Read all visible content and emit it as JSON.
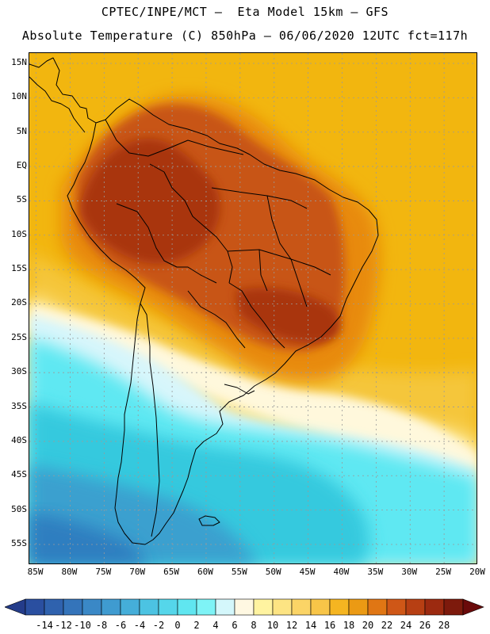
{
  "header": {
    "line1": "CPTEC/INPE/MCT –  Eta Model 15km – GFS",
    "line2": "Absolute Temperature (C) 850hPa – 06/06/2020 12UTC fct=117h"
  },
  "map": {
    "region": "South America",
    "variable": "Absolute Temperature (C) at 850hPa",
    "lat_range": [
      -58,
      16.5
    ],
    "lon_range": [
      -86,
      -20
    ],
    "lat_ticks": [
      {
        "value": 15,
        "label": "15N"
      },
      {
        "value": 10,
        "label": "10N"
      },
      {
        "value": 5,
        "label": "5N"
      },
      {
        "value": 0,
        "label": "EQ"
      },
      {
        "value": -5,
        "label": "5S"
      },
      {
        "value": -10,
        "label": "10S"
      },
      {
        "value": -15,
        "label": "15S"
      },
      {
        "value": -20,
        "label": "20S"
      },
      {
        "value": -25,
        "label": "25S"
      },
      {
        "value": -30,
        "label": "30S"
      },
      {
        "value": -35,
        "label": "35S"
      },
      {
        "value": -40,
        "label": "40S"
      },
      {
        "value": -45,
        "label": "45S"
      },
      {
        "value": -50,
        "label": "50S"
      },
      {
        "value": -55,
        "label": "55S"
      }
    ],
    "lon_ticks": [
      {
        "value": -85,
        "label": "85W"
      },
      {
        "value": -80,
        "label": "80W"
      },
      {
        "value": -75,
        "label": "75W"
      },
      {
        "value": -70,
        "label": "70W"
      },
      {
        "value": -65,
        "label": "65W"
      },
      {
        "value": -60,
        "label": "60W"
      },
      {
        "value": -55,
        "label": "55W"
      },
      {
        "value": -50,
        "label": "50W"
      },
      {
        "value": -45,
        "label": "45W"
      },
      {
        "value": -40,
        "label": "40W"
      },
      {
        "value": -35,
        "label": "35W"
      },
      {
        "value": -30,
        "label": "30W"
      },
      {
        "value": -25,
        "label": "25W"
      },
      {
        "value": -20,
        "label": "20W"
      }
    ],
    "colors": {
      "ocean_tropical": "#f2b60f",
      "warm": "#e88a0d",
      "hot": "#c85514",
      "hottest": "#a9360f",
      "mild": "#f5c63a",
      "pale": "#fde488",
      "cream": "#fff8dc",
      "ice": "#d8f6fb",
      "cyan": "#5fe8f2",
      "teal": "#35c9de",
      "blue": "#3aa0cf",
      "deep_blue": "#2f7ec0",
      "grid": "#9a9a9a",
      "coast": "#000000"
    }
  },
  "colorbar": {
    "labels": [
      "-14",
      "-12",
      "-10",
      "-8",
      "-6",
      "-4",
      "-2",
      "0",
      "2",
      "4",
      "6",
      "8",
      "10",
      "12",
      "14",
      "16",
      "18",
      "20",
      "22",
      "24",
      "26",
      "28"
    ],
    "colors": [
      "#2a4fa0",
      "#2f62ae",
      "#3474ba",
      "#3a88c6",
      "#3f9bd0",
      "#45aed9",
      "#4cc3e2",
      "#55d6ea",
      "#60e6f0",
      "#7ef3f6",
      "#d4f7fb",
      "#fff8e2",
      "#fff3a0",
      "#fde483",
      "#fbd466",
      "#f8c548",
      "#f5b521",
      "#eb9a14",
      "#e07614",
      "#cf5717",
      "#b73f13",
      "#9c2a10",
      "#7d1a0c"
    ],
    "left_arrow_color": "#243c8a",
    "right_arrow_color": "#6a0a0a"
  }
}
